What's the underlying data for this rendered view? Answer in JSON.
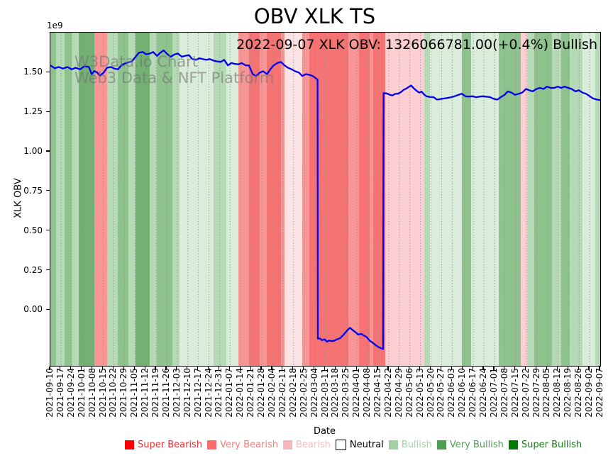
{
  "ui": {
    "title": "OBV XLK TS",
    "annotation": "2022-09-07 XLK OBV: 1326066781.00(+0.4%) Bullish",
    "watermark_line1": "W3Data.io Chart",
    "watermark_line2": "Web3 Data & NFT Platform",
    "y_axis_label": "XLK OBV",
    "x_axis_label": "Date",
    "y_offset_label": "1e9"
  },
  "chart_data": {
    "type": "line",
    "title": "OBV XLK TS",
    "xlabel": "Date",
    "ylabel": "XLK OBV",
    "y_unit_multiplier": "1e9",
    "ylim": [
      -0.352,
      1.752
    ],
    "grid": "vertical-dotted-weekly",
    "line_color": "#0000ee",
    "x_tick_labels": [
      "2021-09-10",
      "2021-09-17",
      "2021-09-24",
      "2021-10-01",
      "2021-10-08",
      "2021-10-15",
      "2021-10-22",
      "2021-10-29",
      "2021-11-05",
      "2021-11-12",
      "2021-11-19",
      "2021-11-26",
      "2021-12-03",
      "2021-12-10",
      "2021-12-17",
      "2021-12-24",
      "2021-12-31",
      "2022-01-07",
      "2022-01-14",
      "2022-01-21",
      "2022-01-28",
      "2022-02-04",
      "2022-02-11",
      "2022-02-18",
      "2022-02-25",
      "2022-03-04",
      "2022-03-11",
      "2022-03-18",
      "2022-03-25",
      "2022-04-01",
      "2022-04-08",
      "2022-04-15",
      "2022-04-22",
      "2022-04-29",
      "2022-05-06",
      "2022-05-13",
      "2022-05-20",
      "2022-05-27",
      "2022-06-03",
      "2022-06-10",
      "2022-06-17",
      "2022-06-24",
      "2022-07-01",
      "2022-07-08",
      "2022-07-15",
      "2022-07-22",
      "2022-07-29",
      "2022-08-05",
      "2022-08-12",
      "2022-08-19",
      "2022-08-26",
      "2022-09-02",
      "2022-09-07"
    ],
    "y_tick_labels": [
      "1.50",
      "1.25",
      "1.00",
      "0.75",
      "0.50",
      "0.25",
      "0.00"
    ],
    "y_tick_values": [
      1.5,
      1.25,
      1.0,
      0.75,
      0.5,
      0.25,
      0.0
    ],
    "series": [
      {
        "name": "XLK OBV (1e9)",
        "last_value": 1.326066781,
        "last_change_pct": "+0.4%",
        "last_signal": "Bullish",
        "points": [
          [
            0.0,
            1.545
          ],
          [
            0.008,
            1.527
          ],
          [
            0.015,
            1.535
          ],
          [
            0.023,
            1.525
          ],
          [
            0.031,
            1.535
          ],
          [
            0.039,
            1.52
          ],
          [
            0.046,
            1.53
          ],
          [
            0.054,
            1.52
          ],
          [
            0.062,
            1.54
          ],
          [
            0.07,
            1.535
          ],
          [
            0.075,
            1.49
          ],
          [
            0.08,
            1.51
          ],
          [
            0.085,
            1.5
          ],
          [
            0.09,
            1.48
          ],
          [
            0.097,
            1.5
          ],
          [
            0.103,
            1.53
          ],
          [
            0.11,
            1.535
          ],
          [
            0.116,
            1.525
          ],
          [
            0.123,
            1.52
          ],
          [
            0.129,
            1.545
          ],
          [
            0.135,
            1.556
          ],
          [
            0.142,
            1.565
          ],
          [
            0.148,
            1.57
          ],
          [
            0.155,
            1.6
          ],
          [
            0.161,
            1.625
          ],
          [
            0.168,
            1.63
          ],
          [
            0.174,
            1.615
          ],
          [
            0.181,
            1.62
          ],
          [
            0.187,
            1.63
          ],
          [
            0.194,
            1.605
          ],
          [
            0.2,
            1.625
          ],
          [
            0.206,
            1.64
          ],
          [
            0.213,
            1.615
          ],
          [
            0.219,
            1.6
          ],
          [
            0.226,
            1.615
          ],
          [
            0.232,
            1.62
          ],
          [
            0.239,
            1.6
          ],
          [
            0.245,
            1.605
          ],
          [
            0.252,
            1.61
          ],
          [
            0.258,
            1.585
          ],
          [
            0.265,
            1.58
          ],
          [
            0.271,
            1.59
          ],
          [
            0.277,
            1.585
          ],
          [
            0.284,
            1.58
          ],
          [
            0.29,
            1.585
          ],
          [
            0.297,
            1.575
          ],
          [
            0.303,
            1.57
          ],
          [
            0.31,
            1.567
          ],
          [
            0.316,
            1.58
          ],
          [
            0.323,
            1.545
          ],
          [
            0.329,
            1.56
          ],
          [
            0.335,
            1.555
          ],
          [
            0.342,
            1.552
          ],
          [
            0.348,
            1.56
          ],
          [
            0.355,
            1.545
          ],
          [
            0.361,
            1.545
          ],
          [
            0.368,
            1.49
          ],
          [
            0.374,
            1.478
          ],
          [
            0.381,
            1.5
          ],
          [
            0.387,
            1.508
          ],
          [
            0.394,
            1.49
          ],
          [
            0.4,
            1.52
          ],
          [
            0.406,
            1.545
          ],
          [
            0.413,
            1.56
          ],
          [
            0.419,
            1.567
          ],
          [
            0.426,
            1.545
          ],
          [
            0.432,
            1.53
          ],
          [
            0.439,
            1.52
          ],
          [
            0.445,
            1.508
          ],
          [
            0.452,
            1.5
          ],
          [
            0.458,
            1.478
          ],
          [
            0.465,
            1.49
          ],
          [
            0.471,
            1.485
          ],
          [
            0.477,
            1.478
          ],
          [
            0.484,
            1.46
          ],
          [
            0.486,
            1.455
          ],
          [
            0.4865,
            -0.18
          ],
          [
            0.49,
            -0.179
          ],
          [
            0.494,
            -0.19
          ],
          [
            0.499,
            -0.185
          ],
          [
            0.503,
            -0.2
          ],
          [
            0.507,
            -0.192
          ],
          [
            0.511,
            -0.196
          ],
          [
            0.516,
            -0.194
          ],
          [
            0.521,
            -0.185
          ],
          [
            0.527,
            -0.178
          ],
          [
            0.532,
            -0.16
          ],
          [
            0.537,
            -0.14
          ],
          [
            0.542,
            -0.12
          ],
          [
            0.545,
            -0.112
          ],
          [
            0.55,
            -0.127
          ],
          [
            0.555,
            -0.14
          ],
          [
            0.56,
            -0.155
          ],
          [
            0.565,
            -0.15
          ],
          [
            0.57,
            -0.16
          ],
          [
            0.575,
            -0.17
          ],
          [
            0.581,
            -0.194
          ],
          [
            0.586,
            -0.205
          ],
          [
            0.591,
            -0.22
          ],
          [
            0.596,
            -0.232
          ],
          [
            0.601,
            -0.24
          ],
          [
            0.605,
            -0.246
          ],
          [
            0.606,
            1.37
          ],
          [
            0.612,
            1.368
          ],
          [
            0.617,
            1.36
          ],
          [
            0.622,
            1.355
          ],
          [
            0.627,
            1.365
          ],
          [
            0.632,
            1.366
          ],
          [
            0.637,
            1.375
          ],
          [
            0.642,
            1.39
          ],
          [
            0.648,
            1.4
          ],
          [
            0.653,
            1.412
          ],
          [
            0.656,
            1.418
          ],
          [
            0.661,
            1.4
          ],
          [
            0.666,
            1.385
          ],
          [
            0.671,
            1.373
          ],
          [
            0.675,
            1.38
          ],
          [
            0.68,
            1.36
          ],
          [
            0.684,
            1.35
          ],
          [
            0.69,
            1.345
          ],
          [
            0.697,
            1.344
          ],
          [
            0.703,
            1.329
          ],
          [
            0.71,
            1.333
          ],
          [
            0.716,
            1.336
          ],
          [
            0.723,
            1.34
          ],
          [
            0.729,
            1.344
          ],
          [
            0.735,
            1.35
          ],
          [
            0.742,
            1.359
          ],
          [
            0.748,
            1.366
          ],
          [
            0.755,
            1.35
          ],
          [
            0.761,
            1.348
          ],
          [
            0.768,
            1.35
          ],
          [
            0.774,
            1.344
          ],
          [
            0.781,
            1.348
          ],
          [
            0.787,
            1.35
          ],
          [
            0.794,
            1.347
          ],
          [
            0.8,
            1.344
          ],
          [
            0.806,
            1.334
          ],
          [
            0.813,
            1.329
          ],
          [
            0.819,
            1.344
          ],
          [
            0.826,
            1.359
          ],
          [
            0.832,
            1.381
          ],
          [
            0.839,
            1.373
          ],
          [
            0.845,
            1.359
          ],
          [
            0.852,
            1.366
          ],
          [
            0.858,
            1.373
          ],
          [
            0.865,
            1.396
          ],
          [
            0.871,
            1.388
          ],
          [
            0.877,
            1.381
          ],
          [
            0.884,
            1.396
          ],
          [
            0.89,
            1.403
          ],
          [
            0.897,
            1.396
          ],
          [
            0.903,
            1.411
          ],
          [
            0.91,
            1.403
          ],
          [
            0.916,
            1.403
          ],
          [
            0.923,
            1.411
          ],
          [
            0.929,
            1.403
          ],
          [
            0.935,
            1.411
          ],
          [
            0.942,
            1.403
          ],
          [
            0.948,
            1.396
          ],
          [
            0.955,
            1.381
          ],
          [
            0.961,
            1.388
          ],
          [
            0.968,
            1.373
          ],
          [
            0.974,
            1.366
          ],
          [
            0.981,
            1.35
          ],
          [
            0.987,
            1.336
          ],
          [
            0.994,
            1.329
          ],
          [
            1.0,
            1.326
          ]
        ]
      }
    ],
    "band_palette": {
      "g3": "#72b172",
      "g2": "#8ec38e",
      "g1": "#b6d9b6",
      "g0": "#daecda",
      "r3": "#f57373",
      "r2": "#f89595",
      "r1": "#fccfd2",
      "r0": "#fde4e4"
    },
    "bands": [
      [
        0.0,
        0.01,
        "g2"
      ],
      [
        0.01,
        0.026,
        "g1"
      ],
      [
        0.026,
        0.039,
        "g2"
      ],
      [
        0.039,
        0.052,
        "g1"
      ],
      [
        0.052,
        0.08,
        "g3"
      ],
      [
        0.08,
        0.103,
        "r2"
      ],
      [
        0.103,
        0.123,
        "g1"
      ],
      [
        0.123,
        0.142,
        "g2"
      ],
      [
        0.142,
        0.155,
        "g1"
      ],
      [
        0.155,
        0.181,
        "g3"
      ],
      [
        0.181,
        0.194,
        "g1"
      ],
      [
        0.194,
        0.222,
        "g2"
      ],
      [
        0.222,
        0.235,
        "g1"
      ],
      [
        0.235,
        0.297,
        "g0"
      ],
      [
        0.297,
        0.32,
        "g1"
      ],
      [
        0.32,
        0.342,
        "g0"
      ],
      [
        0.342,
        0.361,
        "r2"
      ],
      [
        0.361,
        0.381,
        "r3"
      ],
      [
        0.381,
        0.394,
        "r2"
      ],
      [
        0.394,
        0.419,
        "r3"
      ],
      [
        0.419,
        0.426,
        "r2"
      ],
      [
        0.426,
        0.458,
        "r0"
      ],
      [
        0.458,
        0.471,
        "r2"
      ],
      [
        0.471,
        0.542,
        "r3"
      ],
      [
        0.542,
        0.561,
        "r2"
      ],
      [
        0.561,
        0.581,
        "r3"
      ],
      [
        0.581,
        0.587,
        "r2"
      ],
      [
        0.587,
        0.609,
        "r3"
      ],
      [
        0.609,
        0.68,
        "r1"
      ],
      [
        0.68,
        0.69,
        "g1"
      ],
      [
        0.69,
        0.748,
        "g0"
      ],
      [
        0.748,
        0.765,
        "g2"
      ],
      [
        0.765,
        0.816,
        "g0"
      ],
      [
        0.816,
        0.855,
        "g2"
      ],
      [
        0.855,
        0.867,
        "r1"
      ],
      [
        0.867,
        0.88,
        "g1"
      ],
      [
        0.88,
        0.912,
        "g2"
      ],
      [
        0.912,
        0.929,
        "g1"
      ],
      [
        0.929,
        0.945,
        "g2"
      ],
      [
        0.945,
        0.968,
        "g1"
      ],
      [
        0.968,
        0.991,
        "g0"
      ],
      [
        0.991,
        1.0,
        "g1"
      ]
    ],
    "legend_position": "bottom-center",
    "legend": [
      {
        "label": "Super Bearish",
        "swatch": "#fe0000",
        "text_color": "#e43333",
        "swatch_border": "none"
      },
      {
        "label": "Very Bearish",
        "swatch": "#fd6b6b",
        "text_color": "#f77c7c",
        "swatch_border": "none"
      },
      {
        "label": "Bearish",
        "swatch": "#f7b6bc",
        "text_color": "#f5bcbc",
        "swatch_border": "none"
      },
      {
        "label": "Neutral",
        "swatch": "#ffffff",
        "text_color": "#000000",
        "swatch_border": "#000000"
      },
      {
        "label": "Bullish",
        "swatch": "#a5d0a5",
        "text_color": "#a8cfa8",
        "swatch_border": "none"
      },
      {
        "label": "Very Bullish",
        "swatch": "#4f9e4f",
        "text_color": "#51a051",
        "swatch_border": "none"
      },
      {
        "label": "Super Bullish",
        "swatch": "#027c02",
        "text_color": "#158015",
        "swatch_border": "none"
      }
    ]
  }
}
